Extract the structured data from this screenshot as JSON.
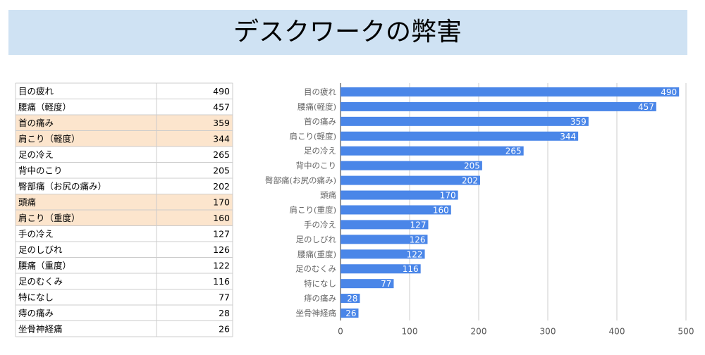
{
  "header": {
    "title": "デスクワークの弊害"
  },
  "table": {
    "rows": [
      {
        "label": "目の疲れ",
        "value": 490
      },
      {
        "label": "腰痛（軽度）",
        "value": 457
      },
      {
        "label": "首の痛み",
        "value": 359,
        "highlight": true
      },
      {
        "label": "肩こり（軽度）",
        "value": 344,
        "highlight": true
      },
      {
        "label": "足の冷え",
        "value": 265
      },
      {
        "label": "背中のこり",
        "value": 205
      },
      {
        "label": "臀部痛（お尻の痛み）",
        "value": 202
      },
      {
        "label": "頭痛",
        "value": 170,
        "highlight": true
      },
      {
        "label": "肩こり（重度）",
        "value": 160,
        "highlight": true
      },
      {
        "label": "手の冷え",
        "value": 127
      },
      {
        "label": "足のしびれ",
        "value": 126
      },
      {
        "label": "腰痛（重度）",
        "value": 122
      },
      {
        "label": "足のむくみ",
        "value": 116
      },
      {
        "label": "特になし",
        "value": 77
      },
      {
        "label": "痔の痛み",
        "value": 28
      },
      {
        "label": "坐骨神経痛",
        "value": 26
      }
    ],
    "highlight_color": "#fce5cd"
  },
  "chart_data": {
    "type": "bar",
    "orientation": "horizontal",
    "categories": [
      "目の疲れ",
      "腰痛(軽度)",
      "首の痛み",
      "肩こり(軽度)",
      "足の冷え",
      "背中のこり",
      "臀部痛(お尻の痛み)",
      "頭痛",
      "肩こり(重度)",
      "手の冷え",
      "足のしびれ",
      "腰痛(重度)",
      "足のむくみ",
      "特になし",
      "痔の痛み",
      "坐骨神経痛"
    ],
    "values": [
      490,
      457,
      359,
      344,
      265,
      205,
      202,
      170,
      160,
      127,
      126,
      122,
      116,
      77,
      28,
      26
    ],
    "color": "#4a86e8",
    "xlim": [
      0,
      500
    ],
    "xticks": [
      0,
      100,
      200,
      300,
      400,
      500
    ],
    "grid": true
  }
}
